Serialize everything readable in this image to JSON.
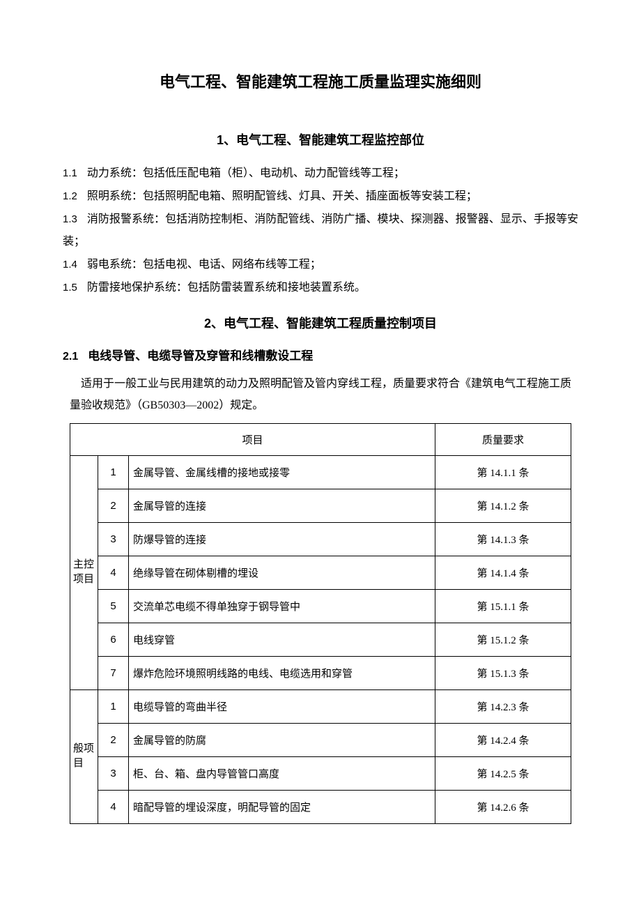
{
  "title": "电气工程、智能建筑工程施工质量监理实施细则",
  "section1": {
    "heading": "1、电气工程、智能建筑工程监控部位",
    "items": [
      {
        "num": "1.1",
        "text": "动力系统：包括低压配电箱（柜）、电动机、动力配管线等工程；"
      },
      {
        "num": "1.2",
        "text": "照明系统：包括照明配电箱、照明配管线、灯具、开关、插座面板等安装工程；"
      },
      {
        "num": "1.3",
        "text": "消防报警系统：包括消防控制柜、消防配管线、消防广播、模块、探测器、报警器、显示、手报等安装；"
      },
      {
        "num": "1.4",
        "text": "弱电系统：包括电视、电话、网络布线等工程；"
      },
      {
        "num": "1.5",
        "text": "防雷接地保护系统：包括防雷装置系统和接地装置系统。"
      }
    ]
  },
  "section2": {
    "heading": "2、电气工程、智能建筑工程质量控制项目",
    "sub": {
      "num": "2.1",
      "title": "电线导管、电缆导管及穿管和线槽敷设工程",
      "intro": "适用于一般工业与民用建筑的动力及照明配管及管内穿线工程，质量要求符合《建筑电气工程施工质量验收规范》（GB50303—2002）规定。"
    }
  },
  "table": {
    "header_item": "项目",
    "header_req": "质量要求",
    "group1_label": "主控项目",
    "group2_label": "般项目",
    "rows1": [
      {
        "n": "1",
        "desc": "金属导管、金属线槽的接地或接零",
        "req": "第 14.1.1 条"
      },
      {
        "n": "2",
        "desc": "金属导管的连接",
        "req": "第 14.1.2 条"
      },
      {
        "n": "3",
        "desc": "防爆导管的连接",
        "req": "第 14.1.3 条"
      },
      {
        "n": "4",
        "desc": "绝缘导管在砌体剔槽的埋设",
        "req": "第 14.1.4 条"
      },
      {
        "n": "5",
        "desc": "交流单芯电缆不得单独穿于钢导管中",
        "req": "第 15.1.1 条"
      },
      {
        "n": "6",
        "desc": "电线穿管",
        "req": "第 15.1.2 条"
      },
      {
        "n": "7",
        "desc": "爆炸危险环境照明线路的电线、电缆选用和穿管",
        "req": "第 15.1.3 条"
      }
    ],
    "rows2": [
      {
        "n": "1",
        "desc": "电缆导管的弯曲半径",
        "req": "第 14.2.3 条"
      },
      {
        "n": "2",
        "desc": "金属导管的防腐",
        "req": "第 14.2.4 条"
      },
      {
        "n": "3",
        "desc": "柜、台、箱、盘内导管管口高度",
        "req": "第 14.2.5 条"
      },
      {
        "n": "4",
        "desc": "暗配导管的埋设深度，明配导管的固定",
        "req": "第 14.2.6 条"
      }
    ]
  },
  "colors": {
    "text": "#000000",
    "background": "#ffffff",
    "border": "#000000"
  },
  "fonts": {
    "body": "SimSun",
    "heading": "SimHei",
    "title_size": 22,
    "heading_size": 18,
    "body_size": 16,
    "table_size": 15
  }
}
